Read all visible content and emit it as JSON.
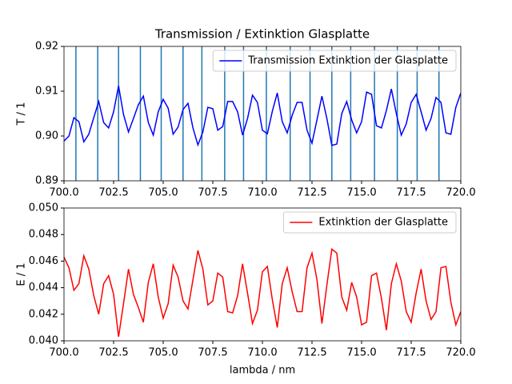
{
  "chart_data": [
    {
      "type": "line",
      "title": "Transmission / Extinktion Glasplatte",
      "y_label": "T / 1",
      "x": [
        700,
        700.25,
        700.5,
        700.75,
        701,
        701.25,
        701.5,
        701.75,
        702,
        702.25,
        702.5,
        702.75,
        703,
        703.25,
        703.5,
        703.75,
        704,
        704.25,
        704.5,
        704.75,
        705,
        705.25,
        705.5,
        705.75,
        706,
        706.25,
        706.5,
        706.75,
        707,
        707.25,
        707.5,
        707.75,
        708,
        708.25,
        708.5,
        708.75,
        709,
        709.25,
        709.5,
        709.75,
        710,
        710.25,
        710.5,
        710.75,
        711,
        711.25,
        711.5,
        711.75,
        712,
        712.25,
        712.5,
        712.75,
        713,
        713.25,
        713.5,
        713.75,
        714,
        714.25,
        714.5,
        714.75,
        715,
        715.25,
        715.5,
        715.75,
        716,
        716.25,
        716.5,
        716.75,
        717,
        717.25,
        717.5,
        717.75,
        718,
        718.25,
        718.5,
        718.75,
        719,
        719.25,
        719.5,
        719.75,
        720
      ],
      "series": [
        {
          "name": "Transmission Extinktion der Glasplatte",
          "color": "#0000ff",
          "values": [
            0.8989,
            0.9,
            0.9041,
            0.9032,
            0.8987,
            0.9004,
            0.9041,
            0.9077,
            0.903,
            0.9018,
            0.9054,
            0.9112,
            0.9048,
            0.9009,
            0.9039,
            0.907,
            0.9089,
            0.903,
            0.9002,
            0.9054,
            0.9082,
            0.9062,
            0.9004,
            0.902,
            0.9059,
            0.9073,
            0.9018,
            0.898,
            0.9009,
            0.9064,
            0.9061,
            0.9013,
            0.9021,
            0.9077,
            0.9077,
            0.9054,
            0.9002,
            0.9039,
            0.9091,
            0.9075,
            0.9013,
            0.9005,
            0.9055,
            0.9096,
            0.9032,
            0.9007,
            0.9046,
            0.9075,
            0.9075,
            0.9013,
            0.8984,
            0.9036,
            0.9089,
            0.9039,
            0.8979,
            0.8982,
            0.905,
            0.9077,
            0.9036,
            0.9007,
            0.9032,
            0.9098,
            0.9093,
            0.9023,
            0.9018,
            0.9057,
            0.9105,
            0.905,
            0.9002,
            0.9027,
            0.9075,
            0.9093,
            0.9054,
            0.9013,
            0.9039,
            0.9086,
            0.9075,
            0.9007,
            0.9004,
            0.9064,
            0.9096
          ]
        }
      ],
      "vlines": [
        700.6,
        701.7,
        702.75,
        703.85,
        704.9,
        706.0,
        706.95,
        708.1,
        709.05,
        710.2,
        711.4,
        712.4,
        713.5,
        714.45,
        715.65,
        716.8,
        717.8,
        718.9
      ],
      "vline_color": "#1f77b4",
      "xlim": [
        700,
        720
      ],
      "xticks": [
        {
          "value": 700,
          "label": "700.0"
        },
        {
          "value": 702.5,
          "label": "702.5"
        },
        {
          "value": 705,
          "label": "705.0"
        },
        {
          "value": 707.5,
          "label": "707.5"
        },
        {
          "value": 710,
          "label": "710.0"
        },
        {
          "value": 712.5,
          "label": "712.5"
        },
        {
          "value": 715,
          "label": "715.0"
        },
        {
          "value": 717.5,
          "label": "717.5"
        },
        {
          "value": 720,
          "label": "720.0"
        }
      ],
      "ylim": [
        0.89,
        0.92
      ],
      "yticks": [
        0.89,
        {
          "value": 0.9,
          "label": "0.90"
        },
        0.91,
        0.92
      ],
      "legend": "upper right"
    },
    {
      "type": "line",
      "x_label": "lambda / nm",
      "y_label": "E / 1",
      "x": [
        700,
        700.25,
        700.5,
        700.75,
        701,
        701.25,
        701.5,
        701.75,
        702,
        702.25,
        702.5,
        702.75,
        703,
        703.25,
        703.5,
        703.75,
        704,
        704.25,
        704.5,
        704.75,
        705,
        705.25,
        705.5,
        705.75,
        706,
        706.25,
        706.5,
        706.75,
        707,
        707.25,
        707.5,
        707.75,
        708,
        708.25,
        708.5,
        708.75,
        709,
        709.25,
        709.5,
        709.75,
        710,
        710.25,
        710.5,
        710.75,
        711,
        711.25,
        711.5,
        711.75,
        712,
        712.25,
        712.5,
        712.75,
        713,
        713.25,
        713.5,
        713.75,
        714,
        714.25,
        714.5,
        714.75,
        715,
        715.25,
        715.5,
        715.75,
        716,
        716.25,
        716.5,
        716.75,
        717,
        717.25,
        717.5,
        717.75,
        718,
        718.25,
        718.5,
        718.75,
        719,
        719.25,
        719.5,
        719.75,
        720
      ],
      "series": [
        {
          "name": "Extinktion der Glasplatte",
          "color": "#ff0000",
          "values": [
            0.0463,
            0.0455,
            0.0438,
            0.0443,
            0.0464,
            0.0454,
            0.0434,
            0.042,
            0.0443,
            0.0449,
            0.0435,
            0.0403,
            0.0428,
            0.0454,
            0.0435,
            0.0425,
            0.0414,
            0.0444,
            0.0458,
            0.0433,
            0.0417,
            0.0428,
            0.0457,
            0.0448,
            0.043,
            0.0424,
            0.0446,
            0.0468,
            0.0454,
            0.0427,
            0.043,
            0.0451,
            0.0448,
            0.0422,
            0.0421,
            0.0434,
            0.0458,
            0.0436,
            0.0413,
            0.0423,
            0.0452,
            0.0456,
            0.0431,
            0.041,
            0.0443,
            0.0455,
            0.0437,
            0.0422,
            0.0422,
            0.0455,
            0.0466,
            0.0446,
            0.0413,
            0.0442,
            0.0469,
            0.0466,
            0.0433,
            0.0423,
            0.0444,
            0.0433,
            0.0412,
            0.0414,
            0.0449,
            0.0451,
            0.0432,
            0.0408,
            0.0443,
            0.0458,
            0.0445,
            0.0422,
            0.0414,
            0.0436,
            0.0454,
            0.043,
            0.0416,
            0.0422,
            0.0455,
            0.0456,
            0.0429,
            0.0412,
            0.0422
          ]
        }
      ],
      "xlim": [
        700,
        720
      ],
      "xticks": [
        {
          "value": 700,
          "label": "700.0"
        },
        {
          "value": 702.5,
          "label": "702.5"
        },
        {
          "value": 705,
          "label": "705.0"
        },
        {
          "value": 707.5,
          "label": "707.5"
        },
        {
          "value": 710,
          "label": "710.0"
        },
        {
          "value": 712.5,
          "label": "712.5"
        },
        {
          "value": 715,
          "label": "715.0"
        },
        {
          "value": 717.5,
          "label": "717.5"
        },
        {
          "value": 720,
          "label": "720.0"
        }
      ],
      "ylim": [
        0.04,
        0.05
      ],
      "yticks": [
        {
          "value": 0.04,
          "label": "0.040"
        },
        0.042,
        0.044,
        0.046,
        0.048,
        {
          "value": 0.05,
          "label": "0.050"
        }
      ],
      "legend": "upper right"
    }
  ]
}
